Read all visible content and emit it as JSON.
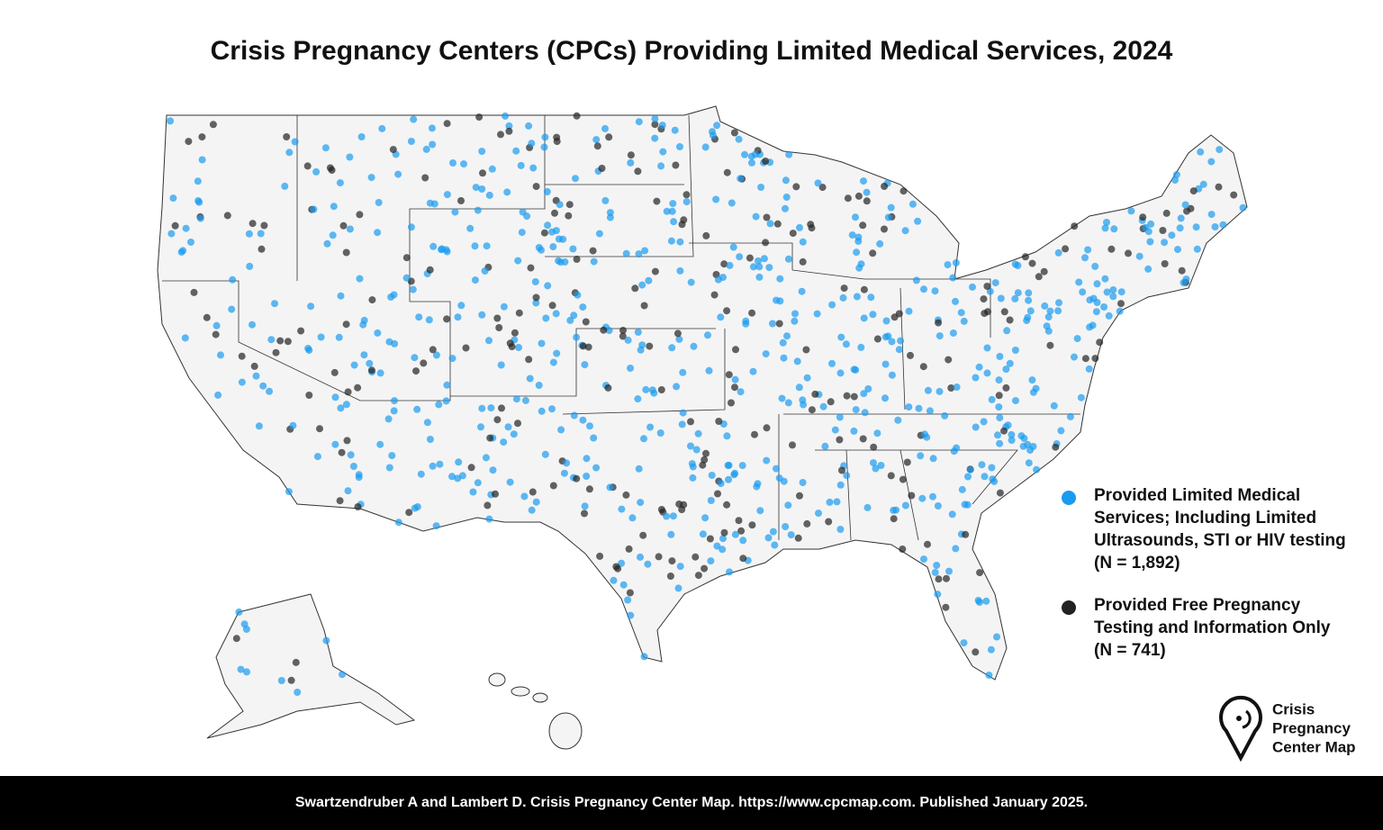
{
  "title": "Crisis Pregnancy Centers (CPCs) Providing Limited Medical Services, 2024",
  "legend": [
    {
      "lines": [
        "Provided Limited Medical",
        "Services; Including Limited",
        "Ultrasounds, STI or HIV testing",
        "(N = 1,892)"
      ],
      "color": "#1a9bf0"
    },
    {
      "lines": [
        "Provided Free Pregnancy",
        "Testing and Information Only",
        "(N = 741)"
      ],
      "color": "#222222"
    }
  ],
  "logo": {
    "lines": [
      "Crisis",
      "Pregnancy",
      "Center Map"
    ]
  },
  "footer": "Swartzendruber A and Lambert D. Crisis Pregnancy Center Map. https://www.cpcmap.com. Published January 2025."
}
